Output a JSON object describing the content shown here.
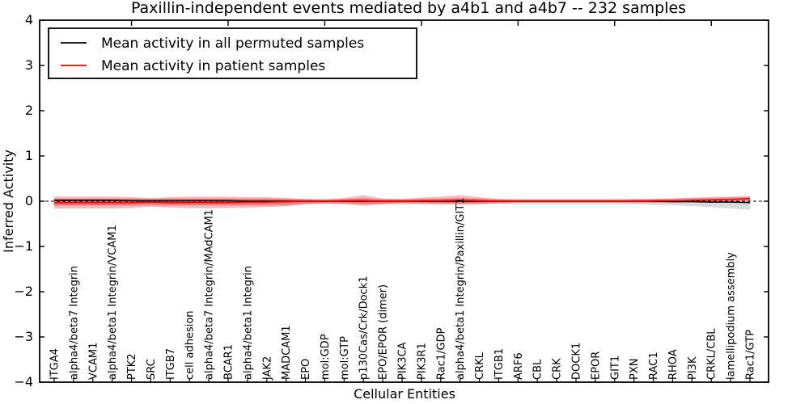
{
  "chart_data": {
    "type": "line",
    "title": "Paxillin-independent events mediated by a4b1 and a4b7 -- 232 samples",
    "xlabel": "Cellular Entities",
    "ylabel": "Inferred Activity",
    "ylim": [
      -4,
      4
    ],
    "yticks": [
      -4,
      -3,
      -2,
      -1,
      0,
      1,
      2,
      3,
      4
    ],
    "yticklabels": [
      "−4",
      "−3",
      "−2",
      "−1",
      "0",
      "1",
      "2",
      "3",
      "4"
    ],
    "grid": false,
    "legend_position": "upper left",
    "zero_line_style": "dashed",
    "top_axis_major_ticks_at_categories": [
      5,
      10,
      15,
      20,
      25,
      30,
      35
    ],
    "categories": [
      "ITGA4",
      "alpha4/beta7 Integrin",
      "VCAM1",
      "alpha4/beta1 Integrin/VCAM1",
      "PTK2",
      "SRC",
      "ITGB7",
      "cell adhesion",
      "alpha4/beta7 Integrin/MAdCAM1",
      "BCAR1",
      "alpha4/beta1 Integrin",
      "JAK2",
      "MADCAM1",
      "EPO",
      "mol:GDP",
      "mol:GTP",
      "p130Cas/Crk/Dock1",
      "EPO/EPOR (dimer)",
      "PIK3CA",
      "PIK3R1",
      "Rac1/GDP",
      "alpha4/beta1 Integrin/Paxillin/GIT1",
      "CRKL",
      "ITGB1",
      "ARF6",
      "CBL",
      "CRK",
      "DOCK1",
      "EPOR",
      "GIT1",
      "PXN",
      "RAC1",
      "RHOA",
      "PI3K",
      "CRKL/CBL",
      "lamellipodium assembly",
      "Rac1/GTP"
    ],
    "series": [
      {
        "name": "Mean activity in all permuted samples",
        "color": "#000000",
        "values": [
          0.02,
          0.02,
          0.02,
          0.02,
          0.01,
          0.01,
          0.01,
          0.01,
          0.01,
          0.01,
          0,
          0,
          0,
          0,
          0,
          0,
          0,
          0,
          0,
          0,
          0,
          0,
          0,
          0,
          0,
          0,
          0,
          0,
          0,
          0,
          0,
          0,
          -0.01,
          -0.01,
          -0.02,
          -0.02,
          -0.03
        ]
      },
      {
        "name": "Mean activity in patient samples",
        "color": "#ff0000",
        "values": [
          -0.03,
          -0.03,
          -0.03,
          -0.03,
          -0.03,
          -0.02,
          -0.03,
          -0.03,
          -0.03,
          -0.03,
          -0.02,
          -0.02,
          -0.01,
          0,
          0,
          0.01,
          0.01,
          0,
          0,
          0.01,
          0.01,
          0.02,
          0.01,
          0,
          0,
          0,
          0,
          0,
          0,
          0,
          0,
          0.01,
          0.01,
          0.02,
          0.03,
          0.04,
          0.06
        ]
      }
    ],
    "bands": [
      {
        "name": "permuted-sample-range",
        "color": "#999999",
        "opacity": 0.35,
        "low": [
          -0.1,
          -0.1,
          -0.1,
          -0.1,
          -0.1,
          -0.1,
          -0.1,
          -0.1,
          -0.1,
          -0.1,
          -0.1,
          -0.1,
          -0.1,
          -0.07,
          -0.07,
          -0.07,
          -0.07,
          -0.07,
          -0.07,
          -0.07,
          -0.06,
          -0.06,
          -0.06,
          -0.06,
          -0.06,
          -0.06,
          -0.06,
          -0.06,
          -0.06,
          -0.06,
          -0.07,
          -0.08,
          -0.09,
          -0.11,
          -0.13,
          -0.16,
          -0.19
        ],
        "high": [
          0.06,
          0.06,
          0.06,
          0.06,
          0.06,
          0.06,
          0.06,
          0.06,
          0.06,
          0.06,
          0.06,
          0.06,
          0.06,
          0.05,
          0.05,
          0.05,
          0.05,
          0.05,
          0.05,
          0.05,
          0.05,
          0.05,
          0.05,
          0.05,
          0.05,
          0.05,
          0.05,
          0.05,
          0.05,
          0.05,
          0.05,
          0.05,
          0.06,
          0.07,
          0.08,
          0.09,
          0.1
        ]
      },
      {
        "name": "patient-sample-range-outer",
        "color": "#ff0000",
        "opacity": 0.28,
        "low": [
          -0.16,
          -0.16,
          -0.16,
          -0.16,
          -0.15,
          -0.12,
          -0.14,
          -0.15,
          -0.15,
          -0.15,
          -0.14,
          -0.13,
          -0.11,
          -0.07,
          -0.05,
          -0.06,
          -0.1,
          -0.07,
          -0.05,
          -0.06,
          -0.07,
          -0.08,
          -0.07,
          -0.05,
          -0.04,
          -0.04,
          -0.04,
          -0.04,
          -0.04,
          -0.04,
          -0.04,
          -0.04,
          -0.03,
          -0.02,
          -0.01,
          0.0,
          0.01
        ],
        "high": [
          0.1,
          0.1,
          0.1,
          0.1,
          0.09,
          0.07,
          0.09,
          0.1,
          0.1,
          0.1,
          0.09,
          0.09,
          0.07,
          0.05,
          0.04,
          0.07,
          0.13,
          0.06,
          0.05,
          0.08,
          0.1,
          0.13,
          0.09,
          0.05,
          0.04,
          0.04,
          0.04,
          0.04,
          0.04,
          0.04,
          0.05,
          0.05,
          0.06,
          0.08,
          0.09,
          0.1,
          0.11
        ]
      },
      {
        "name": "patient-sample-range-inner",
        "color": "#ff0000",
        "opacity": 0.3,
        "low": [
          -0.09,
          -0.09,
          -0.09,
          -0.09,
          -0.08,
          -0.07,
          -0.08,
          -0.08,
          -0.08,
          -0.08,
          -0.08,
          -0.07,
          -0.06,
          -0.04,
          -0.03,
          -0.03,
          -0.05,
          -0.04,
          -0.03,
          -0.03,
          -0.04,
          -0.04,
          -0.04,
          -0.03,
          -0.02,
          -0.02,
          -0.02,
          -0.02,
          -0.02,
          -0.02,
          -0.02,
          -0.02,
          -0.02,
          -0.01,
          0.0,
          0.01,
          0.02
        ],
        "high": [
          0.05,
          0.05,
          0.05,
          0.05,
          0.05,
          0.04,
          0.05,
          0.05,
          0.05,
          0.05,
          0.05,
          0.05,
          0.04,
          0.03,
          0.02,
          0.04,
          0.07,
          0.03,
          0.03,
          0.04,
          0.05,
          0.07,
          0.05,
          0.03,
          0.02,
          0.02,
          0.02,
          0.02,
          0.02,
          0.02,
          0.03,
          0.03,
          0.03,
          0.04,
          0.05,
          0.06,
          0.07
        ]
      }
    ]
  }
}
